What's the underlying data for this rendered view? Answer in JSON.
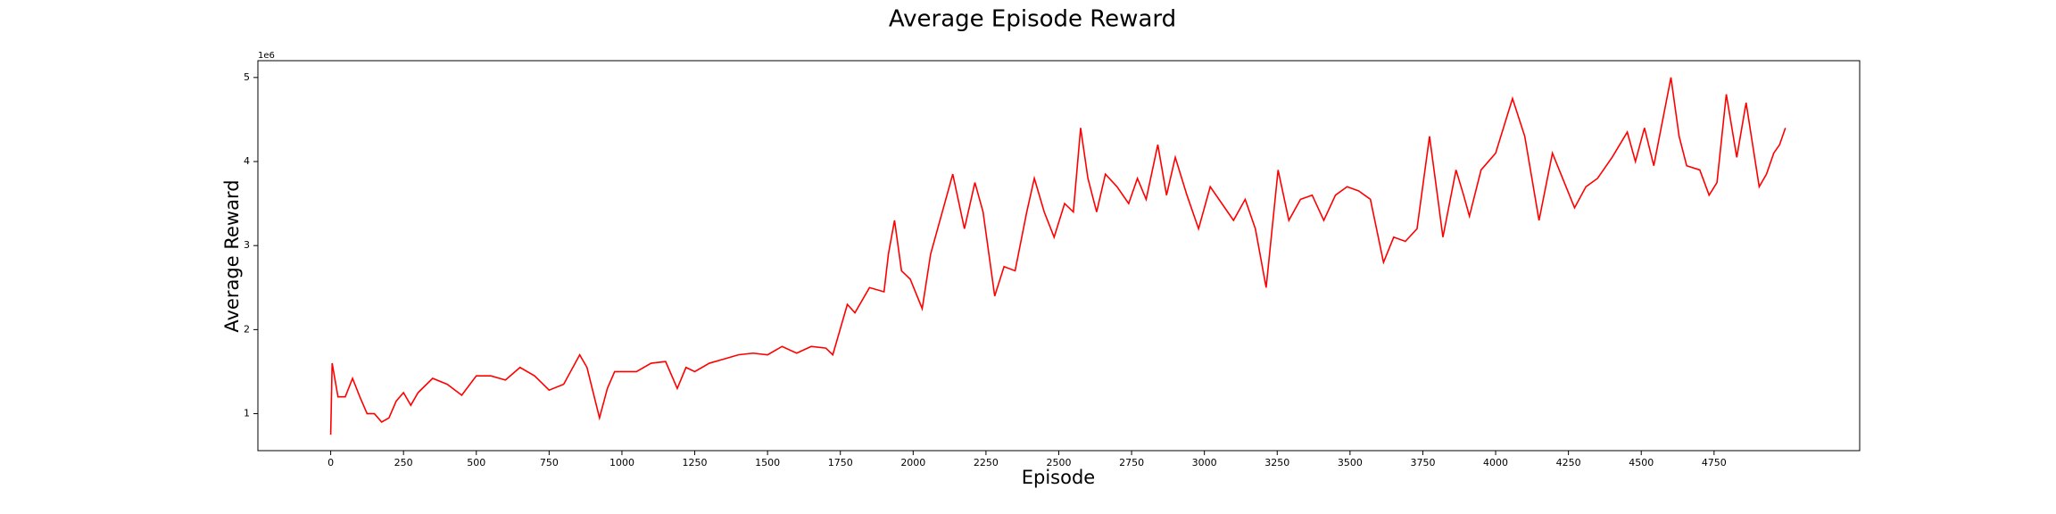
{
  "chart_data": {
    "type": "line",
    "title": "Average Episode Reward",
    "x_label": "Episode",
    "y_label": "Average Reward",
    "y_offset_label": "1e6",
    "x": [
      0,
      5,
      25,
      50,
      75,
      100,
      125,
      150,
      175,
      200,
      225,
      250,
      275,
      300,
      350,
      400,
      450,
      500,
      550,
      600,
      650,
      700,
      750,
      800,
      855,
      880,
      905,
      923,
      950,
      975,
      1000,
      1050,
      1100,
      1150,
      1190,
      1220,
      1250,
      1300,
      1350,
      1400,
      1450,
      1500,
      1550,
      1600,
      1650,
      1700,
      1724,
      1774,
      1800,
      1850,
      1900,
      1915,
      1936,
      1960,
      1990,
      2031,
      2060,
      2100,
      2136,
      2176,
      2212,
      2240,
      2280,
      2312,
      2350,
      2390,
      2416,
      2450,
      2484,
      2520,
      2550,
      2575,
      2600,
      2630,
      2660,
      2700,
      2740,
      2770,
      2800,
      2840,
      2870,
      2900,
      2940,
      2980,
      3020,
      3060,
      3100,
      3140,
      3175,
      3212,
      3253,
      3290,
      3330,
      3370,
      3410,
      3450,
      3490,
      3530,
      3570,
      3615,
      3650,
      3690,
      3730,
      3773,
      3800,
      3819,
      3864,
      3890,
      3910,
      3950,
      4000,
      4058,
      4100,
      4149,
      4195,
      4230,
      4271,
      4310,
      4350,
      4400,
      4452,
      4480,
      4511,
      4543,
      4602,
      4630,
      4656,
      4701,
      4733,
      4760,
      4792,
      4828,
      4860,
      4905,
      4930,
      4955,
      4975,
      4995
    ],
    "series": [
      {
        "name": "Average Reward",
        "color": "#ff0000",
        "values": [
          0.75,
          1.6,
          1.2,
          1.2,
          1.42,
          1.2,
          1.0,
          1.0,
          0.9,
          0.95,
          1.15,
          1.25,
          1.1,
          1.25,
          1.42,
          1.35,
          1.22,
          1.45,
          1.45,
          1.4,
          1.55,
          1.45,
          1.28,
          1.35,
          1.7,
          1.55,
          1.2,
          0.95,
          1.3,
          1.5,
          1.5,
          1.5,
          1.6,
          1.62,
          1.3,
          1.55,
          1.5,
          1.6,
          1.65,
          1.7,
          1.72,
          1.7,
          1.8,
          1.72,
          1.8,
          1.78,
          1.7,
          2.3,
          2.2,
          2.5,
          2.45,
          2.9,
          3.3,
          2.7,
          2.6,
          2.25,
          2.9,
          3.4,
          3.85,
          3.2,
          3.75,
          3.4,
          2.4,
          2.75,
          2.7,
          3.4,
          3.8,
          3.4,
          3.1,
          3.5,
          3.4,
          4.4,
          3.8,
          3.4,
          3.85,
          3.7,
          3.5,
          3.8,
          3.55,
          4.2,
          3.6,
          4.05,
          3.6,
          3.2,
          3.7,
          3.5,
          3.3,
          3.55,
          3.2,
          2.5,
          3.9,
          3.3,
          3.55,
          3.6,
          3.3,
          3.6,
          3.7,
          3.65,
          3.55,
          2.8,
          3.1,
          3.05,
          3.2,
          4.3,
          3.6,
          3.1,
          3.9,
          3.6,
          3.35,
          3.9,
          4.1,
          4.75,
          4.3,
          3.3,
          4.1,
          3.8,
          3.45,
          3.7,
          3.8,
          4.05,
          4.35,
          4.0,
          4.4,
          3.95,
          5.0,
          4.3,
          3.95,
          3.9,
          3.6,
          3.75,
          4.8,
          4.05,
          4.7,
          3.7,
          3.85,
          4.1,
          4.2,
          4.4
        ]
      }
    ],
    "xlim": [
      -250,
      5250
    ],
    "ylim": [
      0.56,
      5.2
    ],
    "xticks": [
      0,
      250,
      500,
      750,
      1000,
      1250,
      1500,
      1750,
      2000,
      2250,
      2500,
      2750,
      3000,
      3250,
      3500,
      3750,
      4000,
      4250,
      4500,
      4750
    ],
    "yticks": [
      1,
      2,
      3,
      4,
      5
    ]
  }
}
